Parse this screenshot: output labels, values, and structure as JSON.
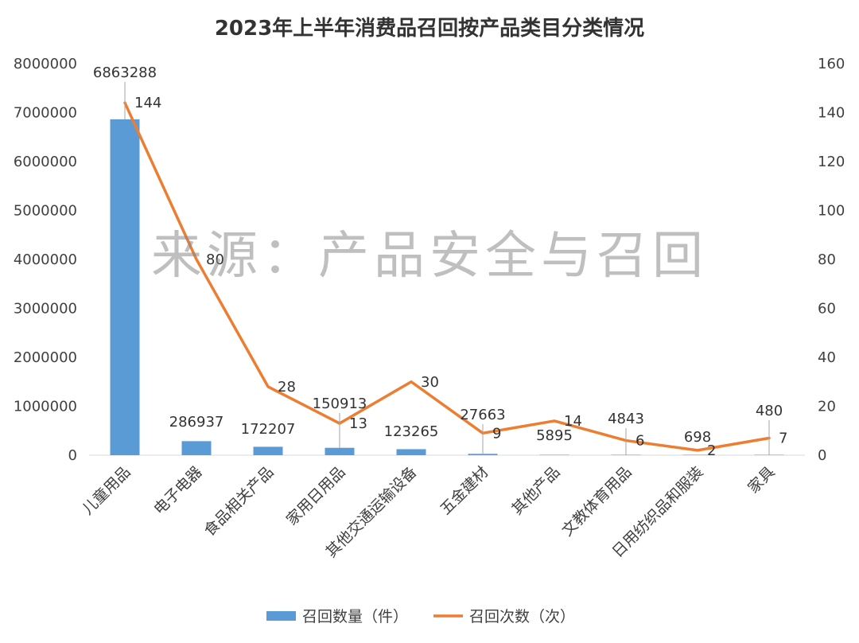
{
  "chart_data": {
    "type": "bar",
    "title": "2023年上半年消费品召回按产品类目分类情况",
    "watermark": "来源：产品安全与召回",
    "categories": [
      "儿童用品",
      "电子电器",
      "食品相关产品",
      "家用日用品",
      "其他交通运输设备",
      "五金建材",
      "其他产品",
      "文教体育用品",
      "日用纺织品和服装",
      "家具"
    ],
    "series": [
      {
        "name": "召回数量（件）",
        "type": "bar",
        "axis": "left",
        "color": "#5b9bd5",
        "values": [
          6863288,
          286937,
          172207,
          150913,
          123265,
          27663,
          5895,
          4843,
          698,
          480
        ]
      },
      {
        "name": "召回次数（次）",
        "type": "line",
        "axis": "right",
        "color": "#ed7d31",
        "values": [
          144,
          80,
          28,
          13,
          30,
          9,
          14,
          6,
          2,
          7
        ]
      }
    ],
    "y_left": {
      "min": 0,
      "max": 8000000,
      "step": 1000000,
      "ticks": [
        "0",
        "1000000",
        "2000000",
        "3000000",
        "4000000",
        "5000000",
        "6000000",
        "7000000",
        "8000000"
      ]
    },
    "y_right": {
      "min": 0,
      "max": 160,
      "step": 20,
      "ticks": [
        "0",
        "20",
        "40",
        "60",
        "80",
        "100",
        "120",
        "140",
        "160"
      ]
    },
    "grid": false,
    "legend_position": "bottom"
  }
}
